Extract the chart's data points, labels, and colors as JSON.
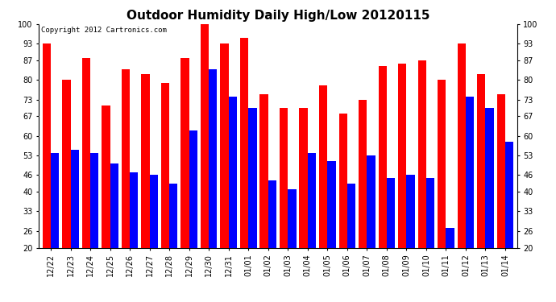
{
  "title": "Outdoor Humidity Daily High/Low 20120115",
  "copyright_text": "Copyright 2012 Cartronics.com",
  "categories": [
    "12/22",
    "12/23",
    "12/24",
    "12/25",
    "12/26",
    "12/27",
    "12/28",
    "12/29",
    "12/30",
    "12/31",
    "01/01",
    "01/02",
    "01/03",
    "01/04",
    "01/05",
    "01/06",
    "01/07",
    "01/08",
    "01/09",
    "01/10",
    "01/11",
    "01/12",
    "01/13",
    "01/14"
  ],
  "high_values": [
    93,
    80,
    88,
    71,
    84,
    82,
    79,
    88,
    100,
    93,
    95,
    75,
    70,
    70,
    78,
    68,
    73,
    85,
    86,
    87,
    80,
    93,
    82,
    75
  ],
  "low_values": [
    54,
    55,
    54,
    50,
    47,
    46,
    43,
    62,
    84,
    74,
    70,
    44,
    41,
    54,
    51,
    43,
    53,
    45,
    46,
    45,
    27,
    74,
    70,
    58
  ],
  "high_color": "#ff0000",
  "low_color": "#0000ff",
  "ylim": [
    20,
    100
  ],
  "yticks": [
    20,
    26,
    33,
    40,
    46,
    53,
    60,
    67,
    73,
    80,
    87,
    93,
    100
  ],
  "background_color": "#ffffff",
  "bar_width": 0.42,
  "title_fontsize": 11,
  "tick_fontsize": 7,
  "copyright_fontsize": 6.5
}
